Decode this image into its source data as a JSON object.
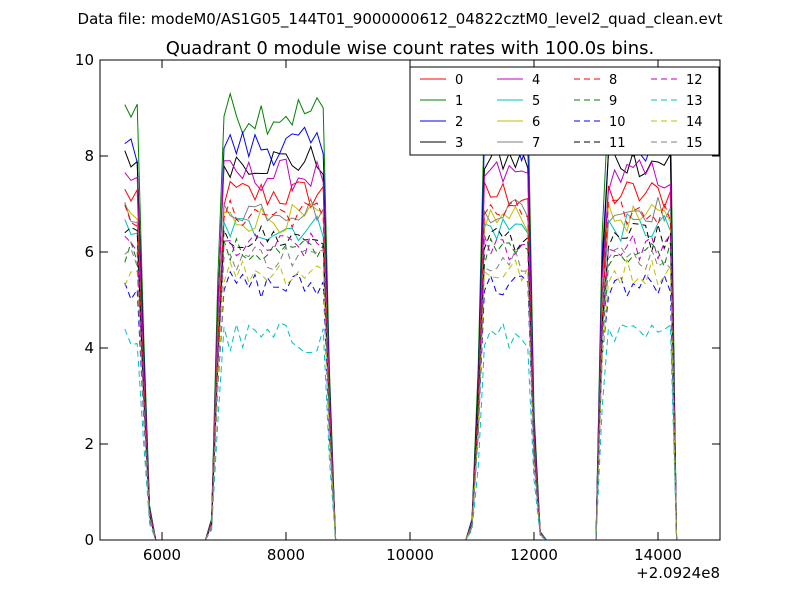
{
  "figure": {
    "suptitle": "Data file: modeM0/AS1G05_144T01_9000000612_04822cztM0_level2_quad_clean.evt"
  },
  "chart_data": {
    "type": "line",
    "title": "Quadrant 0 module wise count rates with 100.0s bins.",
    "xlabel": "",
    "ylabel": "",
    "xlim": [
      5000,
      15000
    ],
    "ylim": [
      0,
      10
    ],
    "x_offset_label": "+2.0924e8",
    "xticks": [
      6000,
      8000,
      10000,
      12000,
      14000
    ],
    "yticks": [
      0,
      2,
      4,
      6,
      8,
      10
    ],
    "grid": false,
    "legend": {
      "placement": "top-right",
      "columns": 4
    },
    "segments": [
      {
        "t_start": 5400,
        "t_end": 5600,
        "step": 100,
        "fall": [
          0.5,
          0.08
        ]
      },
      {
        "t_start": 6700,
        "t_end": 8600,
        "step": 100,
        "rise": [
          0.0,
          0.05,
          0.6
        ],
        "fall": [
          0.4
        ]
      },
      {
        "t_start": 10900,
        "t_end": 11900,
        "step": 100,
        "rise": [
          0.0,
          0.05,
          0.4
        ],
        "fall": [
          0.3,
          0.02
        ]
      },
      {
        "t_start": 13000,
        "t_end": 14200,
        "step": 100,
        "rise": [
          0.0,
          0.7
        ]
      }
    ],
    "series": [
      {
        "name": "0",
        "color": "#ff0000",
        "dashed": false,
        "level": 7.2,
        "noise": 0.35
      },
      {
        "name": "1",
        "color": "#008000",
        "dashed": false,
        "level": 8.9,
        "noise": 0.45
      },
      {
        "name": "2",
        "color": "#0000ff",
        "dashed": false,
        "level": 8.2,
        "noise": 0.4
      },
      {
        "name": "3",
        "color": "#000000",
        "dashed": false,
        "level": 7.9,
        "noise": 0.35
      },
      {
        "name": "4",
        "color": "#bf00bf",
        "dashed": false,
        "level": 7.6,
        "noise": 0.35
      },
      {
        "name": "5",
        "color": "#00bfbf",
        "dashed": false,
        "level": 6.5,
        "noise": 0.3
      },
      {
        "name": "6",
        "color": "#bfbf00",
        "dashed": false,
        "level": 6.7,
        "noise": 0.3
      },
      {
        "name": "7",
        "color": "#808080",
        "dashed": false,
        "level": 6.9,
        "noise": 0.3
      },
      {
        "name": "8",
        "color": "#ff0000",
        "dashed": true,
        "level": 6.8,
        "noise": 0.3
      },
      {
        "name": "9",
        "color": "#008000",
        "dashed": true,
        "level": 6.0,
        "noise": 0.3
      },
      {
        "name": "10",
        "color": "#0000ff",
        "dashed": true,
        "level": 5.3,
        "noise": 0.3
      },
      {
        "name": "11",
        "color": "#000000",
        "dashed": true,
        "level": 6.3,
        "noise": 0.3
      },
      {
        "name": "12",
        "color": "#bf00bf",
        "dashed": true,
        "level": 6.1,
        "noise": 0.3
      },
      {
        "name": "13",
        "color": "#00bfbf",
        "dashed": true,
        "level": 4.2,
        "noise": 0.35
      },
      {
        "name": "14",
        "color": "#bfbf00",
        "dashed": true,
        "level": 5.6,
        "noise": 0.3
      },
      {
        "name": "15",
        "color": "#808080",
        "dashed": true,
        "level": 5.9,
        "noise": 0.3
      }
    ]
  }
}
